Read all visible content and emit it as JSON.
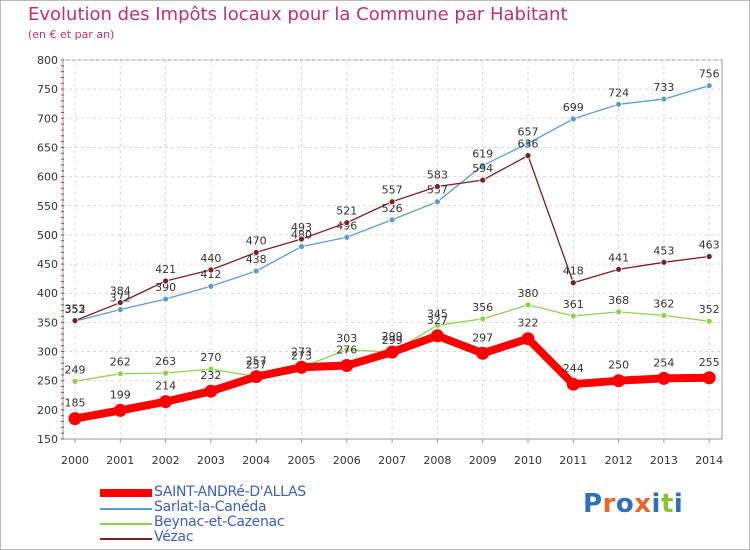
{
  "header": {
    "title": "Evolution des Impôts locaux pour la Commune par Habitant",
    "subtitle": "(en € et par an)"
  },
  "brand": {
    "text": "Proxiti",
    "letters": [
      "P",
      "r",
      "o",
      "x",
      "i",
      "t",
      "i"
    ],
    "colors": [
      "#2f6fbf",
      "#e8662a",
      "#2f6fbf",
      "#e8662a",
      "#2f6fbf",
      "#8dbf3a",
      "#2f6fbf"
    ]
  },
  "chart_data": {
    "type": "line",
    "title": "Evolution des Impôts locaux pour la Commune par Habitant",
    "ylabel": "(en € et par an)",
    "xlabel": "",
    "x": [
      "2000",
      "2001",
      "2002",
      "2003",
      "2004",
      "2005",
      "2006",
      "2007",
      "2008",
      "2009",
      "2010",
      "2011",
      "2012",
      "2013",
      "2014"
    ],
    "ylim": [
      150,
      800
    ],
    "yticks": [
      150,
      200,
      250,
      300,
      350,
      400,
      450,
      500,
      550,
      600,
      650,
      700,
      750,
      800
    ],
    "yticklabels": [
      "150",
      "200",
      "250",
      "300",
      "350",
      "400",
      "450",
      "500",
      "550",
      "600",
      "650",
      "700",
      "750",
      "800"
    ],
    "grid": true,
    "legend_position": "bottom-left",
    "series": [
      {
        "name": "Sarlat-la-Canéda",
        "color": "#5b9bd5",
        "values": [
          352,
          372,
          390,
          412,
          438,
          480,
          496,
          526,
          557,
          619,
          657,
          699,
          724,
          733,
          756
        ],
        "labels": [
          "352",
          "372",
          "390",
          "412",
          "438",
          "480",
          "496",
          "526",
          "557",
          "619",
          "657",
          "699",
          "724",
          "733",
          "756"
        ]
      },
      {
        "name": "Beynac-et-Cazenac",
        "color": "#8fd14f",
        "values": [
          249,
          262,
          263,
          270,
          257,
          273,
          303,
          299,
          345,
          356,
          380,
          361,
          368,
          362,
          352
        ],
        "labels": [
          "249",
          "262",
          "263",
          "270",
          "257",
          "273",
          "303",
          "299",
          "345",
          "356",
          "380",
          "361",
          "368",
          "362",
          "352"
        ]
      },
      {
        "name": "Vézac",
        "color": "#7b1f1f",
        "values": [
          353,
          384,
          421,
          440,
          470,
          493,
          521,
          557,
          583,
          594,
          636,
          418,
          441,
          453,
          463
        ],
        "labels": [
          "353",
          "384",
          "421",
          "440",
          "470",
          "493",
          "521",
          "557",
          "583",
          "594",
          "636",
          "418",
          "441",
          "453",
          "463"
        ]
      },
      {
        "name": "SAINT-ANDRé-D'ALLAS",
        "color": "#ff0000",
        "values": [
          185,
          199,
          214,
          232,
          257,
          273,
          276,
          299,
          327,
          297,
          322,
          244,
          250,
          254,
          255
        ],
        "labels": [
          "185",
          "199",
          "214",
          "232",
          "257",
          "273",
          "276",
          "299",
          "327",
          "297",
          "322",
          "244",
          "250",
          "254",
          "255"
        ]
      }
    ],
    "legend": [
      {
        "name": "SAINT-ANDRé-D'ALLAS",
        "color": "#ff0000"
      },
      {
        "name": "Sarlat-la-Canéda",
        "color": "#5b9bd5"
      },
      {
        "name": "Beynac-et-Cazenac",
        "color": "#8fd14f"
      },
      {
        "name": "Vézac",
        "color": "#7b1f1f"
      }
    ]
  }
}
